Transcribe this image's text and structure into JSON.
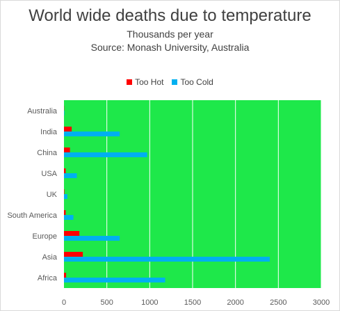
{
  "chart_data": {
    "type": "bar",
    "orientation": "horizontal",
    "title": "World wide deaths due to temperature",
    "subtitle_lines": [
      "Thousands per year",
      "Source: Monash University, Australia"
    ],
    "categories": [
      "Australia",
      "India",
      "China",
      "USA",
      "UK",
      "South America",
      "Europe",
      "Asia",
      "Africa"
    ],
    "series": [
      {
        "name": "Too Hot",
        "color": "#ff0000",
        "values": [
          2,
          90,
          70,
          20,
          5,
          20,
          180,
          220,
          25
        ]
      },
      {
        "name": "Too Cold",
        "color": "#00b0f0",
        "values": [
          5,
          650,
          970,
          150,
          40,
          110,
          650,
          2400,
          1180
        ]
      }
    ],
    "xlim": [
      0,
      3000
    ],
    "xticks": [
      0,
      500,
      1000,
      1500,
      2000,
      2500,
      3000
    ],
    "gridlines": "vertical",
    "plot_background": "#1ee84a",
    "legend_position": "top"
  }
}
